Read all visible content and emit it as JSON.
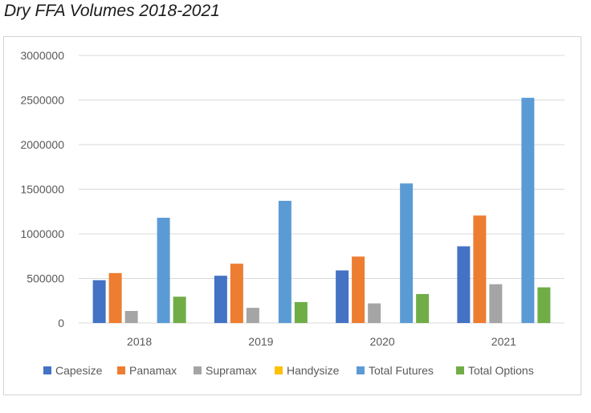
{
  "chart_data": {
    "type": "bar",
    "title": "Dry FFA Volumes 2018-2021",
    "xlabel": "",
    "ylabel": "",
    "categories": [
      "2018",
      "2019",
      "2020",
      "2021"
    ],
    "ylim": [
      0,
      3000000
    ],
    "yticks": [
      "0",
      "500000",
      "1000000",
      "1500000",
      "2000000",
      "2500000",
      "3000000"
    ],
    "grid": true,
    "legend_position": "bottom",
    "series": [
      {
        "name": "Capesize",
        "color": "#4472C4",
        "values": [
          480000,
          530000,
          590000,
          860000
        ]
      },
      {
        "name": "Panamax",
        "color": "#ED7D31",
        "values": [
          560000,
          665000,
          745000,
          1205000
        ]
      },
      {
        "name": "Supramax",
        "color": "#A5A5A5",
        "values": [
          135000,
          170000,
          220000,
          435000
        ]
      },
      {
        "name": "Handysize",
        "color": "#FFC000",
        "values": [
          0,
          0,
          0,
          0
        ]
      },
      {
        "name": "Total Futures",
        "color": "#5B9BD5",
        "values": [
          1180000,
          1370000,
          1565000,
          2525000
        ]
      },
      {
        "name": "Total Options",
        "color": "#70AD47",
        "values": [
          295000,
          235000,
          325000,
          400000
        ]
      }
    ]
  }
}
